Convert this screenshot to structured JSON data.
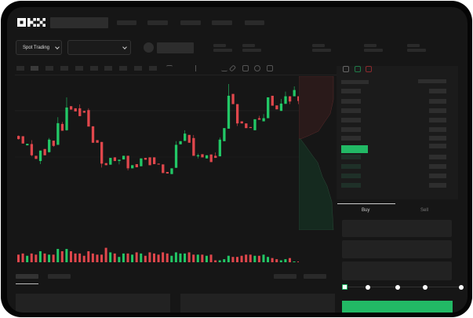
{
  "brand": {
    "logo": "OKX"
  },
  "toolbar": {
    "market_select": "Spot Trading",
    "pair_select": ""
  },
  "trade": {
    "tabs": [
      {
        "label": "Buy",
        "active": true
      },
      {
        "label": "Sell",
        "active": false
      }
    ],
    "slider_percent": 0,
    "slider_stops": 5,
    "accent": "#22b965"
  },
  "colors": {
    "up": "#22c866",
    "down": "#e0474c",
    "background": "#161616"
  },
  "chart_data": {
    "type": "candlestick",
    "ohlc": [
      [
        186,
        188,
        172,
        174
      ],
      [
        185,
        185,
        157,
        157
      ],
      [
        150,
        156,
        150,
        156
      ],
      [
        155,
        170,
        108,
        112
      ],
      [
        110,
        110,
        98,
        98
      ],
      [
        90,
        130,
        78,
        130
      ],
      [
        136,
        136,
        112,
        112
      ],
      [
        124,
        178,
        122,
        172
      ],
      [
        168,
        168,
        144,
        148
      ],
      [
        152,
        258,
        152,
        235
      ],
      [
        232,
        240,
        206,
        206
      ],
      [
        208,
        334,
        206,
        295
      ],
      [
        300,
        300,
        287,
        287
      ],
      [
        292,
        292,
        280,
        280
      ],
      [
        292,
        307,
        262,
        262
      ],
      [
        282,
        282,
        275,
        275
      ],
      [
        285,
        292,
        222,
        222
      ],
      [
        223,
        223,
        160,
        160
      ],
      [
        170,
        170,
        160,
        160
      ],
      [
        163,
        163,
        65,
        80
      ],
      [
        82,
        82,
        74,
        74
      ],
      [
        76,
        102,
        76,
        102
      ],
      [
        104,
        104,
        90,
        90
      ],
      [
        90,
        95,
        77,
        95
      ],
      [
        96,
        110,
        96,
        110
      ],
      [
        110,
        110,
        54,
        62
      ],
      [
        62,
        74,
        62,
        74
      ],
      [
        78,
        78,
        66,
        66
      ],
      [
        70,
        100,
        70,
        100
      ],
      [
        102,
        102,
        95,
        95
      ],
      [
        104,
        104,
        74,
        74
      ],
      [
        104,
        104,
        78,
        78
      ],
      [
        80,
        80,
        78,
        78
      ],
      [
        77,
        77,
        44,
        44
      ],
      [
        48,
        48,
        42,
        42
      ],
      [
        40,
        62,
        40,
        62
      ],
      [
        64,
        166,
        64,
        152
      ],
      [
        154,
        166,
        154,
        166
      ],
      [
        167,
        208,
        167,
        195
      ],
      [
        190,
        190,
        160,
        160
      ],
      [
        178,
        190,
        110,
        110
      ],
      [
        108,
        118,
        100,
        112
      ],
      [
        116,
        116,
        104,
        104
      ],
      [
        100,
        112,
        100,
        112
      ],
      [
        115,
        115,
        86,
        86
      ],
      [
        110,
        123,
        102,
        102
      ],
      [
        108,
        180,
        108,
        172
      ],
      [
        166,
        216,
        166,
        216
      ],
      [
        214,
        385,
        214,
        340
      ],
      [
        347,
        347,
        308,
        308
      ],
      [
        308,
        308,
        224,
        234
      ],
      [
        242,
        242,
        234,
        234
      ],
      [
        234,
        234,
        216,
        216
      ],
      [
        220,
        220,
        217,
        217
      ],
      [
        208,
        250,
        208,
        250
      ],
      [
        254,
        263,
        248,
        248
      ],
      [
        242,
        270,
        242,
        254
      ],
      [
        254,
        334,
        254,
        334
      ],
      [
        340,
        340,
        302,
        302
      ],
      [
        303,
        303,
        288,
        288
      ],
      [
        282,
        328,
        282,
        310
      ],
      [
        309,
        356,
        309,
        338
      ],
      [
        338,
        338,
        308,
        318
      ],
      [
        338,
        376,
        338,
        362
      ],
      [
        338,
        338,
        308,
        320
      ],
      [
        312,
        348,
        312,
        332
      ]
    ],
    "volume": [
      6,
      7,
      5,
      7,
      6,
      9,
      7,
      6,
      6,
      11,
      9,
      11,
      9,
      7,
      7,
      5,
      9,
      7,
      6,
      6,
      12,
      8,
      7,
      4,
      7,
      7,
      6,
      8,
      7,
      5,
      8,
      7,
      6,
      8,
      7,
      5,
      8,
      7,
      7,
      8,
      6,
      6,
      6,
      5,
      6,
      1,
      1,
      2,
      5,
      4,
      4,
      5,
      6,
      6,
      5,
      5,
      6,
      4,
      3,
      2,
      1,
      2,
      3,
      0,
      0,
      0
    ],
    "depth": {
      "asks_shape": "red area upper",
      "bids_shape": "green area lower"
    }
  }
}
